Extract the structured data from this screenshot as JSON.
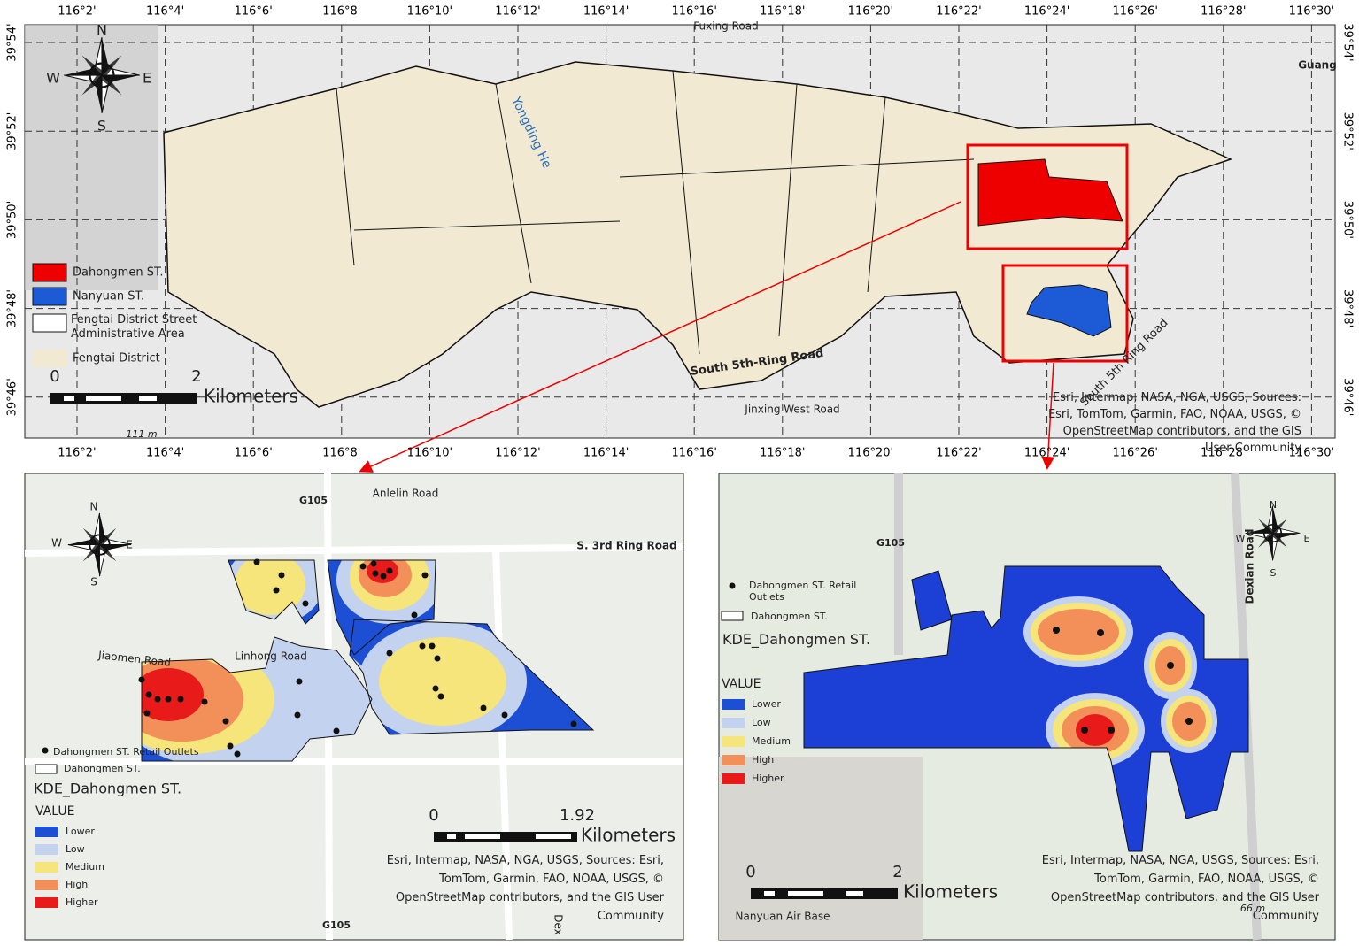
{
  "main_map": {
    "longitude_labels": [
      "116°2'",
      "116°4'",
      "116°6'",
      "116°8'",
      "116°10'",
      "116°12'",
      "116°14'",
      "116°16'",
      "116°18'",
      "116°20'",
      "116°22'",
      "116°24'",
      "116°26'",
      "116°28'",
      "116°30'"
    ],
    "latitude_labels": [
      "39°54'",
      "39°52'",
      "39°50'",
      "39°48'",
      "39°46'"
    ],
    "compass": {
      "north": "N",
      "south": "S",
      "east": "E",
      "west": "W"
    },
    "place_labels": [
      "Fuxing Road",
      "Guang",
      "Yongding He",
      "South 5th-Ring Road",
      "South 5th Ring Road",
      "Jinxing West Road",
      "111 m"
    ],
    "legend": [
      "Dahongmen ST.",
      "Nanyuan ST.",
      "Fengtai District Street Administrative Area",
      "Fengtai District"
    ],
    "scale_bar": {
      "start": "0",
      "end": "2",
      "unit": "Kilometers"
    },
    "attribution": "Esri, Intermap, NASA, NGA, USGS, Sources: Esri, TomTom, Garmin, FAO, NOAA, USGS, © OpenStreetMap contributors, and the GIS User Community"
  },
  "left_map": {
    "compass": {
      "north": "N",
      "south": "S",
      "east": "E",
      "west": "W"
    },
    "place_labels": [
      "G105",
      "Anlelin Road",
      "S. 3rd Ring Road",
      "Linhong Road",
      "Jiaomen Road",
      "G105",
      "Dex"
    ],
    "points_legend": "Dahongmen ST. Retail Outlets",
    "boundary_legend": "Dahongmen ST.",
    "layer_title": "KDE_Dahongmen ST.",
    "field": "VALUE",
    "classes": [
      "Lower",
      "Low",
      "Medium",
      "High",
      "Higher"
    ],
    "scale_bar": {
      "start": "0",
      "end": "1.92",
      "unit": "Kilometers"
    },
    "attribution": "Esri, Intermap, NASA, NGA, USGS, Sources: Esri, TomTom, Garmin, FAO, NOAA, USGS, © OpenStreetMap contributors, and the GIS User Community"
  },
  "right_map": {
    "compass": {
      "north": "N",
      "south": "S",
      "east": "E",
      "west": "W"
    },
    "place_labels": [
      "G105",
      "Dexian Road",
      "Nanyuan Air Base",
      "66 m"
    ],
    "points_legend": "Dahongmen ST. Retail Outlets",
    "boundary_legend": "Dahongmen ST.",
    "layer_title": "KDE_Dahongmen ST.",
    "field": "VALUE",
    "classes": [
      "Lower",
      "Low",
      "Medium",
      "High",
      "Higher"
    ],
    "scale_bar": {
      "start": "0",
      "end": "2",
      "unit": "Kilometers"
    },
    "attribution": "Esri, Intermap, NASA, NGA, USGS, Sources: Esri, TomTom, Garmin, FAO, NOAA, USGS, © OpenStreetMap contributors, and the GIS User Community"
  }
}
